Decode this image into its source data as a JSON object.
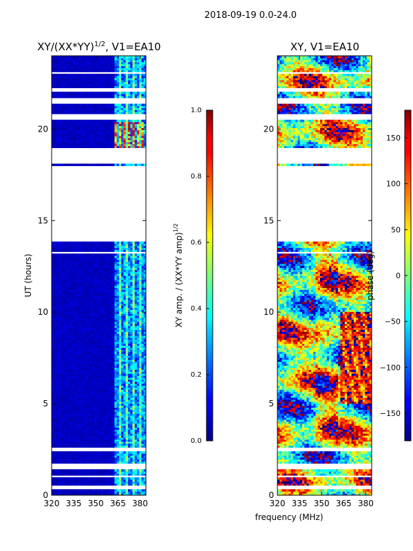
{
  "figure_title": "2018-09-19 0.0-24.0",
  "shared_xlabel": "frequency (MHz)",
  "chart_data": [
    {
      "type": "heatmap",
      "title": "XY/(XX*YY)^1/2, V1=EA10",
      "title_main": "XY/(XX*YY)",
      "title_sup": "1/2",
      "title_tail": ", V1=EA10",
      "xlabel": "frequency (MHz)",
      "ylabel": "UT (hours)",
      "xlim": [
        320,
        384
      ],
      "ylim": [
        0,
        24
      ],
      "xticks": [
        320,
        335,
        350,
        365,
        380
      ],
      "yticks": [
        0,
        5,
        10,
        15,
        20
      ],
      "colorbar": {
        "label_main": "XY amp. / (XX*YY amp)",
        "label_sup": "1/2",
        "range": [
          0.0,
          1.0
        ],
        "ticks": [
          "0.0",
          "0.2",
          "0.4",
          "0.6",
          "0.8",
          "1.0"
        ],
        "colormap": "jet"
      },
      "data_gaps_hours": [
        [
          0.25,
          0.45
        ],
        [
          0.9,
          1.05
        ],
        [
          1.4,
          1.65
        ],
        [
          2.35,
          2.55
        ],
        [
          13.2,
          13.3
        ],
        [
          13.85,
          17.95
        ],
        [
          18.05,
          18.9
        ],
        [
          20.45,
          20.8
        ],
        [
          21.3,
          21.6
        ],
        [
          22.0,
          22.2
        ],
        [
          23.0,
          23.1
        ]
      ]
    },
    {
      "type": "heatmap",
      "title": "XY, V1=EA10",
      "xlabel": "frequency (MHz)",
      "ylabel": "",
      "xlim": [
        320,
        384
      ],
      "ylim": [
        0,
        24
      ],
      "xticks": [
        320,
        335,
        350,
        365,
        380
      ],
      "yticks": [
        0,
        5,
        10,
        15,
        20
      ],
      "colorbar": {
        "label": "phase (deg)",
        "range": [
          -180,
          180
        ],
        "ticks": [
          "150",
          "100",
          "50",
          "0",
          "−50",
          "−100",
          "−150"
        ],
        "tick_values": [
          150,
          100,
          50,
          0,
          -50,
          -100,
          -150
        ],
        "colormap": "jet"
      },
      "data_gaps_hours": [
        [
          0.25,
          0.45
        ],
        [
          0.9,
          1.05
        ],
        [
          1.4,
          1.65
        ],
        [
          2.35,
          2.55
        ],
        [
          13.2,
          13.3
        ],
        [
          13.85,
          17.95
        ],
        [
          18.05,
          18.9
        ],
        [
          20.45,
          20.8
        ],
        [
          21.3,
          21.6
        ],
        [
          22.0,
          22.2
        ],
        [
          23.0,
          23.1
        ]
      ]
    }
  ]
}
